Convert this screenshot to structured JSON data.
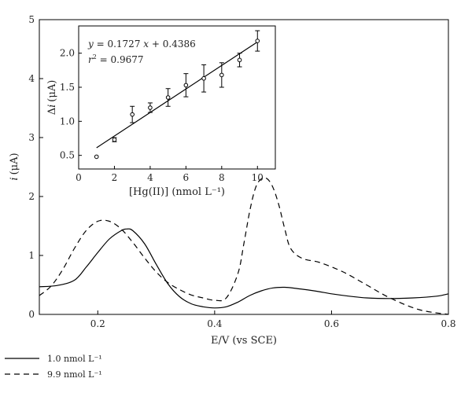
{
  "chart_data": [
    {
      "type": "line",
      "xlabel": "E/V (vs SCE)",
      "ylabel_var": "i",
      "ylabel_unit": "(μA)",
      "xlim": [
        0.1,
        0.8
      ],
      "ylim": [
        0,
        5
      ],
      "x_ticks": [
        "0.2",
        "0.4",
        "0.6",
        "0.8"
      ],
      "x_tick_values": [
        0.2,
        0.4,
        0.6,
        0.8
      ],
      "y_ticks": [
        "0",
        "1",
        "2",
        "3",
        "4",
        "5"
      ],
      "y_tick_values": [
        0,
        1,
        2,
        3,
        4,
        5
      ],
      "grid": false,
      "legend_position": "bottom-left, below plot",
      "series": [
        {
          "name": "1.0 nmol L⁻¹",
          "style": "solid",
          "x": [
            0.1,
            0.13,
            0.16,
            0.18,
            0.2,
            0.22,
            0.24,
            0.25,
            0.26,
            0.28,
            0.3,
            0.32,
            0.34,
            0.36,
            0.38,
            0.4,
            0.42,
            0.44,
            0.46,
            0.48,
            0.5,
            0.52,
            0.54,
            0.57,
            0.6,
            0.63,
            0.66,
            0.7,
            0.74,
            0.78,
            0.8
          ],
          "y": [
            0.47,
            0.49,
            0.58,
            0.8,
            1.05,
            1.28,
            1.42,
            1.45,
            1.42,
            1.2,
            0.85,
            0.52,
            0.3,
            0.18,
            0.13,
            0.11,
            0.13,
            0.21,
            0.32,
            0.4,
            0.45,
            0.46,
            0.44,
            0.4,
            0.35,
            0.31,
            0.28,
            0.27,
            0.28,
            0.31,
            0.35
          ]
        },
        {
          "name": "9.9 nmol L⁻¹",
          "style": "dashed",
          "x": [
            0.1,
            0.12,
            0.14,
            0.16,
            0.18,
            0.2,
            0.22,
            0.24,
            0.26,
            0.28,
            0.3,
            0.32,
            0.34,
            0.36,
            0.38,
            0.4,
            0.42,
            0.44,
            0.45,
            0.46,
            0.47,
            0.48,
            0.49,
            0.5,
            0.51,
            0.52,
            0.53,
            0.55,
            0.58,
            0.62,
            0.66,
            0.7,
            0.75,
            0.8
          ],
          "y": [
            0.32,
            0.48,
            0.76,
            1.12,
            1.42,
            1.58,
            1.58,
            1.45,
            1.22,
            0.96,
            0.72,
            0.54,
            0.42,
            0.33,
            0.28,
            0.24,
            0.28,
            0.7,
            1.2,
            1.75,
            2.15,
            2.3,
            2.3,
            2.15,
            1.85,
            1.45,
            1.12,
            0.95,
            0.88,
            0.72,
            0.5,
            0.28,
            0.08,
            0.0
          ]
        }
      ]
    },
    {
      "type": "scatter",
      "role": "inset",
      "xlabel": "[Hg(II)] (nmol L⁻¹)",
      "ylabel_prefix": "Δ",
      "ylabel_var": "i",
      "ylabel_unit": "(μA)",
      "xlim": [
        0,
        11
      ],
      "ylim": [
        0.3,
        2.4
      ],
      "x_ticks": [
        "0",
        "2",
        "4",
        "6",
        "8",
        "10"
      ],
      "x_tick_values": [
        0,
        2,
        4,
        6,
        8,
        10
      ],
      "y_ticks": [
        "0.5",
        "1.0",
        "1.5",
        "2.0"
      ],
      "y_tick_values": [
        0.5,
        1.0,
        1.5,
        2.0
      ],
      "equation_var_y": "y",
      "equation_rest": " = 0.1727 ",
      "equation_var_x": "x",
      "equation_tail": " + 0.4386",
      "r2_var": "r",
      "r2_exp": "2",
      "r2_value": " = 0.9677",
      "fit": {
        "slope": 0.1727,
        "intercept": 0.4386,
        "x_range": [
          1,
          10
        ]
      },
      "points": [
        {
          "x": 1,
          "y": 0.48,
          "err": 0.0
        },
        {
          "x": 2,
          "y": 0.73,
          "err": 0.03
        },
        {
          "x": 3,
          "y": 1.1,
          "err": 0.12
        },
        {
          "x": 4,
          "y": 1.2,
          "err": 0.07
        },
        {
          "x": 5,
          "y": 1.35,
          "err": 0.13
        },
        {
          "x": 6,
          "y": 1.53,
          "err": 0.17
        },
        {
          "x": 7,
          "y": 1.63,
          "err": 0.2
        },
        {
          "x": 8,
          "y": 1.68,
          "err": 0.18
        },
        {
          "x": 9,
          "y": 1.9,
          "err": 0.1
        },
        {
          "x": 10,
          "y": 2.18,
          "err": 0.15
        }
      ]
    }
  ],
  "legend": [
    {
      "label": "1.0 nmol L⁻¹",
      "style": "solid"
    },
    {
      "label": "9.9 nmol L⁻¹",
      "style": "dashed"
    }
  ]
}
